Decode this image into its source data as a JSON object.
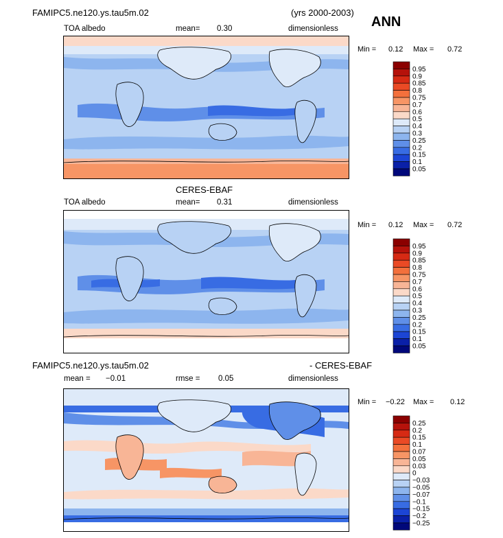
{
  "header": {
    "case_name": "FAMIPC5.ne120.ys.tau5m.02",
    "years": "(yrs 2000-2003)",
    "season": "ANN"
  },
  "panels": [
    {
      "title": "",
      "variable": "TOA albedo",
      "stat_label": "mean=",
      "stat_value": "0.30",
      "units": "dimensionless",
      "min_label": "Min =",
      "min_value": "0.12",
      "max_label": "Max =",
      "max_value": "0.72",
      "colorbar": {
        "labels": [
          "0.95",
          "0.9",
          "0.85",
          "0.8",
          "0.75",
          "0.7",
          "0.6",
          "0.5",
          "0.4",
          "0.3",
          "0.25",
          "0.2",
          "0.15",
          "0.1",
          "0.05"
        ],
        "colors": [
          "#8b0000",
          "#b5120b",
          "#d62a14",
          "#ea4a25",
          "#f3703c",
          "#f79565",
          "#f8b596",
          "#fbd9c8",
          "#deeaf9",
          "#b8d2f4",
          "#8db5ee",
          "#5f8fe8",
          "#386ce3",
          "#1c45d5",
          "#0a20a8",
          "#00087a"
        ]
      }
    },
    {
      "title": "CERES-EBAF",
      "variable": "TOA albedo",
      "stat_label": "mean=",
      "stat_value": "0.31",
      "units": "dimensionless",
      "min_label": "Min =",
      "min_value": "0.12",
      "max_label": "Max =",
      "max_value": "0.72",
      "colorbar": {
        "labels": [
          "0.95",
          "0.9",
          "0.85",
          "0.8",
          "0.75",
          "0.7",
          "0.6",
          "0.5",
          "0.4",
          "0.3",
          "0.25",
          "0.2",
          "0.15",
          "0.1",
          "0.05"
        ],
        "colors": [
          "#8b0000",
          "#b5120b",
          "#d62a14",
          "#ea4a25",
          "#f3703c",
          "#f79565",
          "#f8b596",
          "#fbd9c8",
          "#deeaf9",
          "#b8d2f4",
          "#8db5ee",
          "#5f8fe8",
          "#386ce3",
          "#1c45d5",
          "#0a20a8",
          "#00087a"
        ]
      }
    },
    {
      "title_left": "FAMIPC5.ne120.ys.tau5m.02",
      "title_right": "- CERES-EBAF",
      "mean_label": "mean =",
      "mean_value": "−0.01",
      "rmse_label": "rmse =",
      "rmse_value": "0.05",
      "units": "dimensionless",
      "min_label": "Min =",
      "min_value": "−0.22",
      "max_label": "Max =",
      "max_value": "0.12",
      "colorbar": {
        "labels": [
          "0.25",
          "0.2",
          "0.15",
          "0.1",
          "0.07",
          "0.05",
          "0.03",
          "0",
          "−0.03",
          "−0.05",
          "−0.07",
          "−0.1",
          "−0.15",
          "−0.2",
          "−0.25"
        ],
        "colors": [
          "#8b0000",
          "#b5120b",
          "#d62a14",
          "#ea4a25",
          "#f3703c",
          "#f79565",
          "#f8b596",
          "#fbd9c8",
          "#deeaf9",
          "#b8d2f4",
          "#8db5ee",
          "#5f8fe8",
          "#386ce3",
          "#1c45d5",
          "#0a20a8",
          "#00087a"
        ]
      }
    }
  ]
}
